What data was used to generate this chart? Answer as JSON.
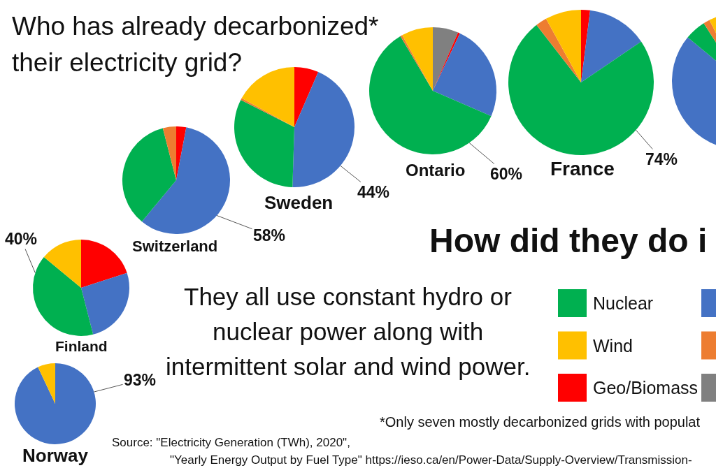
{
  "chart_data": {
    "type": "pie",
    "title": "Who has already decarbonized* their electricity grid?",
    "categories": [
      null,
      "Geo/Biomass",
      null,
      "Nuclear",
      null,
      "Wind"
    ],
    "colors": [
      "#808080",
      "#ff0000",
      "#4472c4",
      "#00b050",
      "#ed7d31",
      "#ffc000"
    ],
    "series": [
      {
        "name": "Switzerland",
        "values": [
          null,
          3,
          58,
          35,
          4,
          null
        ],
        "value_labels": [
          null,
          null,
          "58%",
          null,
          null,
          null
        ]
      },
      {
        "name": "Sweden",
        "values": [
          null,
          6.5,
          44,
          32,
          0.5,
          17
        ],
        "value_labels": [
          null,
          null,
          "44%",
          null,
          null,
          null
        ]
      },
      {
        "name": "Ontario",
        "values": [
          6.5,
          0.5,
          24.5,
          60,
          0.5,
          8
        ],
        "value_labels": [
          null,
          null,
          null,
          "60%",
          null,
          null
        ]
      },
      {
        "name": "France",
        "values": [
          null,
          2,
          13.5,
          74,
          2.5,
          8
        ],
        "value_labels": [
          null,
          null,
          null,
          "74%",
          null,
          null
        ]
      },
      {
        "values": [
          null,
          null,
          86,
          5,
          1.5,
          7.5
        ]
      },
      {
        "name": "Finland",
        "values": [
          null,
          20,
          26,
          40,
          null,
          14
        ],
        "value_labels": [
          null,
          null,
          null,
          "40%",
          null,
          null
        ]
      },
      {
        "name": "Norway",
        "values": [
          null,
          null,
          93,
          null,
          null,
          7
        ],
        "value_labels": [
          null,
          null,
          "93%",
          null,
          null,
          null
        ]
      }
    ],
    "legend": "bottom right",
    "annotations": [
      "How did they do i",
      "They all use constant hydro or nuclear power along with intermittent solar and wind power.",
      "*Only seven mostly decarbonized grids with populat",
      "Source: \"Electricity Generation (TWh), 2020\",",
      "\"Yearly Energy Output by Fuel Type\" https://ieso.ca/en/Power-Data/Supply-Overview/Transmission-"
    ]
  }
}
